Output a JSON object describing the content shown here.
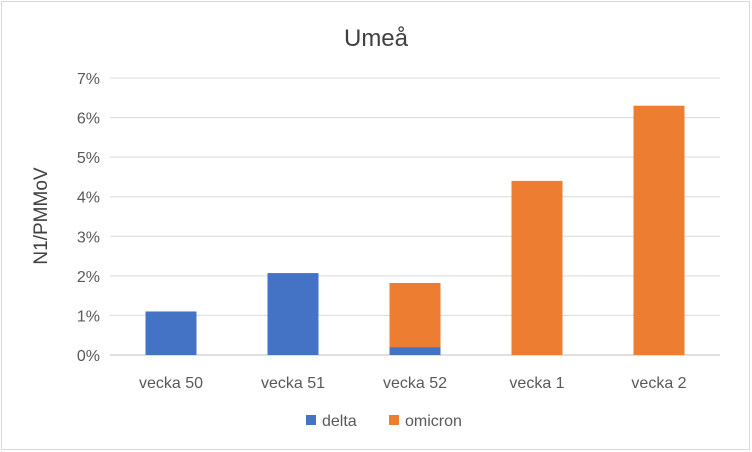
{
  "chart_data": {
    "type": "bar",
    "stacked": true,
    "title": "Umeå",
    "xlabel": "",
    "ylabel": "N1/PMMoV",
    "categories": [
      "vecka 50",
      "vecka 51",
      "vecka 52",
      "vecka 1",
      "vecka 2"
    ],
    "series": [
      {
        "name": "delta",
        "values": [
          0.011,
          0.0207,
          0.002,
          0,
          0
        ],
        "color": "#4472c4"
      },
      {
        "name": "omicron",
        "values": [
          0,
          0,
          0.0162,
          0.044,
          0.063
        ],
        "color": "#ed7d31"
      }
    ],
    "ylim": [
      0,
      0.07
    ],
    "yticks": [
      0,
      0.01,
      0.02,
      0.03,
      0.04,
      0.05,
      0.06,
      0.07
    ],
    "ytick_labels": [
      "0%",
      "1%",
      "2%",
      "3%",
      "4%",
      "5%",
      "6%",
      "7%"
    ],
    "grid": true,
    "legend_position": "bottom"
  }
}
